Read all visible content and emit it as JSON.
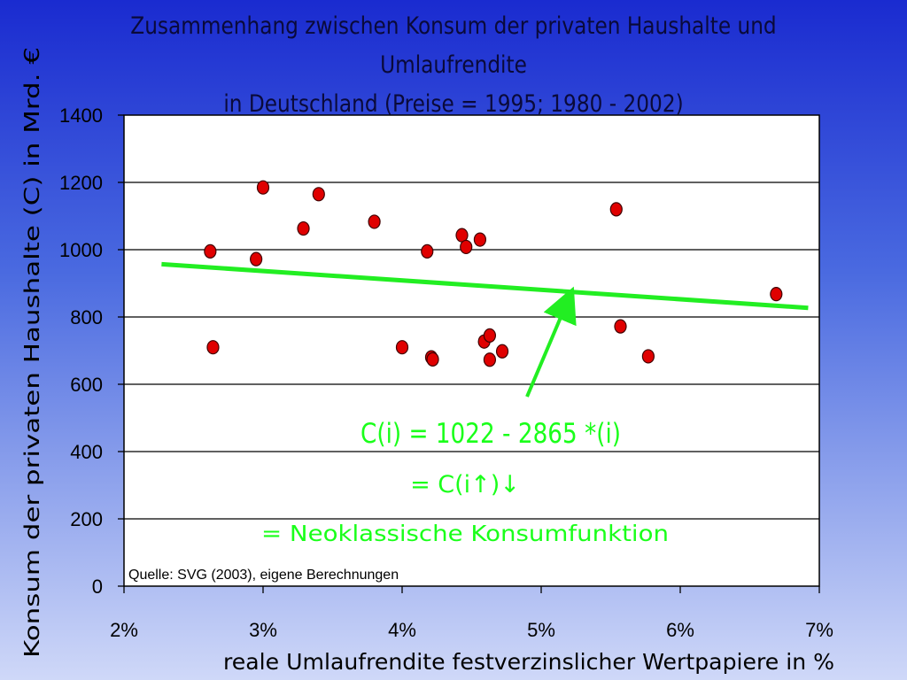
{
  "title": {
    "line1": "Zusammenhang zwischen Konsum der privaten Haushalte und Umlaufrendite",
    "line2": "in Deutschland (Preise = 1995; 1980 - 2002)"
  },
  "chart_data": {
    "type": "scatter",
    "xlabel": "reale Umlaufrendite festverzinslicher Wertpapiere in %",
    "ylabel": "Konsum der privaten Haushalte (C) in Mrd. €",
    "xlim": [
      2,
      7
    ],
    "ylim": [
      0,
      1400
    ],
    "x_ticks": [
      "2%",
      "3%",
      "4%",
      "5%",
      "6%",
      "7%"
    ],
    "y_ticks": [
      "0",
      "200",
      "400",
      "600",
      "800",
      "1000",
      "1200",
      "1400"
    ],
    "grid": "horizontal",
    "marker_color": "#e00000",
    "trend_color": "#22ee22",
    "points": [
      {
        "x": 2.62,
        "y": 995
      },
      {
        "x": 2.64,
        "y": 710
      },
      {
        "x": 2.95,
        "y": 972
      },
      {
        "x": 3.0,
        "y": 1185
      },
      {
        "x": 3.29,
        "y": 1063
      },
      {
        "x": 3.4,
        "y": 1165
      },
      {
        "x": 3.8,
        "y": 1083
      },
      {
        "x": 4.0,
        "y": 710
      },
      {
        "x": 4.18,
        "y": 995
      },
      {
        "x": 4.21,
        "y": 680
      },
      {
        "x": 4.22,
        "y": 674
      },
      {
        "x": 4.43,
        "y": 1043
      },
      {
        "x": 4.46,
        "y": 1008
      },
      {
        "x": 4.56,
        "y": 1030
      },
      {
        "x": 4.59,
        "y": 727
      },
      {
        "x": 4.63,
        "y": 745
      },
      {
        "x": 4.63,
        "y": 673
      },
      {
        "x": 4.72,
        "y": 698
      },
      {
        "x": 5.54,
        "y": 1120
      },
      {
        "x": 5.57,
        "y": 772
      },
      {
        "x": 5.77,
        "y": 683
      },
      {
        "x": 6.69,
        "y": 868
      }
    ],
    "trend_line": {
      "x": [
        2.27,
        6.92
      ],
      "y": [
        957,
        827
      ]
    },
    "equation": "C(i) = 1022 - 2865 *(i)",
    "annotation_line2": "= C(i↑)↓",
    "annotation_line3": "= Neoklassische Konsumfunktion",
    "source": "Quelle: SVG (2003), eigene Berechnungen"
  }
}
